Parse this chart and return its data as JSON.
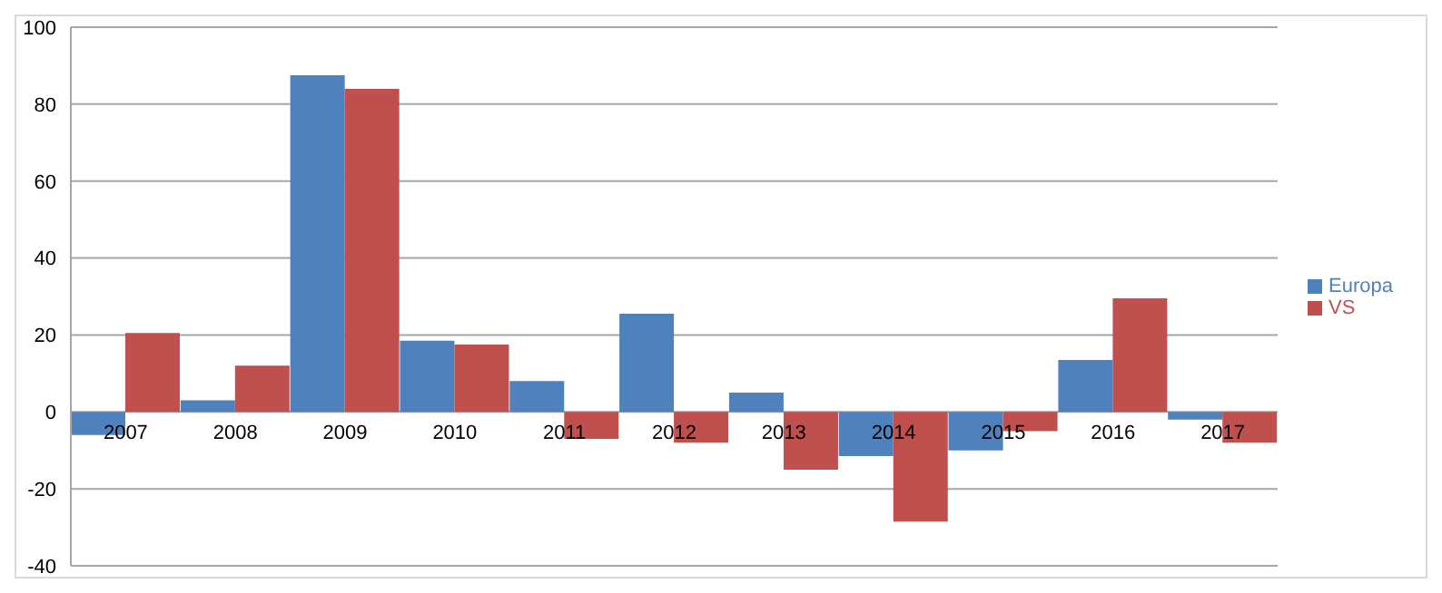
{
  "chart_data": {
    "type": "bar",
    "categories": [
      "2007",
      "2008",
      "2009",
      "2010",
      "2011",
      "2012",
      "2013",
      "2014",
      "2015",
      "2016",
      "2017"
    ],
    "series": [
      {
        "name": "Europa",
        "color": "#4f81bd",
        "values": [
          -6,
          3,
          87.5,
          18.5,
          8,
          25.5,
          5,
          -11.5,
          -10,
          13.5,
          -2
        ]
      },
      {
        "name": "VS",
        "color": "#c0504d",
        "values": [
          20.5,
          12,
          84,
          17.5,
          -7,
          -8,
          -15,
          -28.5,
          -5,
          29.5,
          -8
        ]
      }
    ],
    "ylim": [
      -40,
      100
    ],
    "yticks": [
      -40,
      -20,
      0,
      20,
      40,
      60,
      80,
      100
    ],
    "grid": "y",
    "legend": "right"
  }
}
